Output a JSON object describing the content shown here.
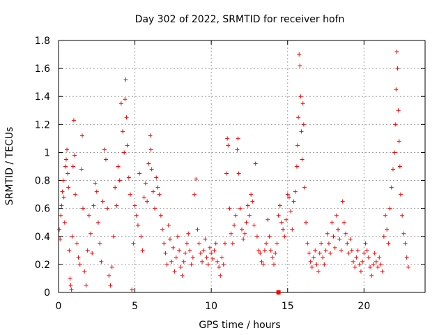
{
  "chart_data": {
    "type": "scatter",
    "title": "Day 302 of 2022, SRMTID for receiver hofn",
    "xlabel": "GPS time / hours",
    "ylabel": "SRMTID / TECUs",
    "xlim": [
      0,
      24
    ],
    "ylim": [
      0,
      1.8
    ],
    "xticks": [
      0,
      5,
      10,
      15,
      20
    ],
    "xtick_labels": [
      "0",
      "5",
      "10",
      "15",
      "20"
    ],
    "yticks": [
      0,
      0.2,
      0.4,
      0.6,
      0.8,
      1.0,
      1.2,
      1.4,
      1.6,
      1.8
    ],
    "ytick_labels": [
      "0",
      "0.2",
      "0.4",
      "0.6",
      "0.8",
      "1",
      "1.2",
      "1.4",
      "1.6",
      "1.8"
    ],
    "grid": true,
    "marker": "plus",
    "color": "#ff0000",
    "series": [
      {
        "name": "hofn",
        "points": [
          [
            0.05,
            0.45
          ],
          [
            0.1,
            0.38
          ],
          [
            0.15,
            0.55
          ],
          [
            0.2,
            0.62
          ],
          [
            0.25,
            0.72
          ],
          [
            0.3,
            0.8
          ],
          [
            0.35,
            0.68
          ],
          [
            0.4,
            0.5
          ],
          [
            0.45,
            0.9
          ],
          [
            0.5,
            0.95
          ],
          [
            0.55,
            1.02
          ],
          [
            0.6,
            0.85
          ],
          [
            0.65,
            0.75
          ],
          [
            0.7,
            0.3
          ],
          [
            0.75,
            0.1
          ],
          [
            0.8,
            0.05
          ],
          [
            0.85,
            0.02
          ],
          [
            0.9,
            0.4
          ],
          [
            0.95,
            0.9
          ],
          [
            1.0,
            1.23
          ],
          [
            1.05,
            0.98
          ],
          [
            1.1,
            0.7
          ],
          [
            1.2,
            0.35
          ],
          [
            1.3,
            0.25
          ],
          [
            1.4,
            0.2
          ],
          [
            1.5,
            0.88
          ],
          [
            1.55,
            1.12
          ],
          [
            1.6,
            0.6
          ],
          [
            1.7,
            0.15
          ],
          [
            1.8,
            0.05
          ],
          [
            1.9,
            0.3
          ],
          [
            2.0,
            0.55
          ],
          [
            2.1,
            0.42
          ],
          [
            2.2,
            0.28
          ],
          [
            2.3,
            0.62
          ],
          [
            2.4,
            0.78
          ],
          [
            2.5,
            0.72
          ],
          [
            2.6,
            0.5
          ],
          [
            2.7,
            0.35
          ],
          [
            2.8,
            0.22
          ],
          [
            2.9,
            0.65
          ],
          [
            3.0,
            1.02
          ],
          [
            3.1,
            0.95
          ],
          [
            3.2,
            0.6
          ],
          [
            3.3,
            0.12
          ],
          [
            3.4,
            0.05
          ],
          [
            3.5,
            0.18
          ],
          [
            3.6,
            0.4
          ],
          [
            3.7,
            0.75
          ],
          [
            3.8,
            0.62
          ],
          [
            3.9,
            0.9
          ],
          [
            4.0,
            0.8
          ],
          [
            4.1,
            1.35
          ],
          [
            4.2,
            1.15
          ],
          [
            4.3,
            1.0
          ],
          [
            4.35,
            1.38
          ],
          [
            4.4,
            1.52
          ],
          [
            4.45,
            1.25
          ],
          [
            4.5,
            1.05
          ],
          [
            4.6,
            0.82
          ],
          [
            4.7,
            0.7
          ],
          [
            4.8,
            0.02
          ],
          [
            4.9,
            0.35
          ],
          [
            5.0,
            0.62
          ],
          [
            5.1,
            0.55
          ],
          [
            5.2,
            0.48
          ],
          [
            5.3,
            0.85
          ],
          [
            5.4,
            0.4
          ],
          [
            5.5,
            0.3
          ],
          [
            5.6,
            0.68
          ],
          [
            5.7,
            0.78
          ],
          [
            5.8,
            0.65
          ],
          [
            5.9,
            0.92
          ],
          [
            6.0,
            1.12
          ],
          [
            6.05,
            1.02
          ],
          [
            6.1,
            0.88
          ],
          [
            6.2,
            0.72
          ],
          [
            6.3,
            0.6
          ],
          [
            6.4,
            0.82
          ],
          [
            6.5,
            0.75
          ],
          [
            6.6,
            0.7
          ],
          [
            6.7,
            0.55
          ],
          [
            6.8,
            0.45
          ],
          [
            6.9,
            0.35
          ],
          [
            7.0,
            0.28
          ],
          [
            7.1,
            0.2
          ],
          [
            7.2,
            0.48
          ],
          [
            7.3,
            0.38
          ],
          [
            7.4,
            0.22
          ],
          [
            7.5,
            0.32
          ],
          [
            7.6,
            0.15
          ],
          [
            7.7,
            0.25
          ],
          [
            7.8,
            0.4
          ],
          [
            7.9,
            0.3
          ],
          [
            8.0,
            0.18
          ],
          [
            8.1,
            0.12
          ],
          [
            8.2,
            0.22
          ],
          [
            8.3,
            0.28
          ],
          [
            8.4,
            0.35
          ],
          [
            8.5,
            0.42
          ],
          [
            8.6,
            0.3
          ],
          [
            8.7,
            0.2
          ],
          [
            8.8,
            0.25
          ],
          [
            8.9,
            0.7
          ],
          [
            9.0,
            0.81
          ],
          [
            9.1,
            0.45
          ],
          [
            9.2,
            0.35
          ],
          [
            9.3,
            0.28
          ],
          [
            9.4,
            0.22
          ],
          [
            9.5,
            0.3
          ],
          [
            9.6,
            0.38
          ],
          [
            9.7,
            0.25
          ],
          [
            9.8,
            0.2
          ],
          [
            9.9,
            0.32
          ],
          [
            10.0,
            0.28
          ],
          [
            10.1,
            0.24
          ],
          [
            10.2,
            0.3
          ],
          [
            10.3,
            0.35
          ],
          [
            10.4,
            0.22
          ],
          [
            10.5,
            0.18
          ],
          [
            10.6,
            0.12
          ],
          [
            10.7,
            0.25
          ],
          [
            10.8,
            0.2
          ],
          [
            10.9,
            0.35
          ],
          [
            11.0,
            0.85
          ],
          [
            11.05,
            1.1
          ],
          [
            11.1,
            1.05
          ],
          [
            11.2,
            0.6
          ],
          [
            11.3,
            0.42
          ],
          [
            11.4,
            0.35
          ],
          [
            11.5,
            0.48
          ],
          [
            11.6,
            0.55
          ],
          [
            11.7,
            1.02
          ],
          [
            11.75,
            1.1
          ],
          [
            11.8,
            0.85
          ],
          [
            11.9,
            0.6
          ],
          [
            12.0,
            0.45
          ],
          [
            12.1,
            0.38
          ],
          [
            12.2,
            0.42
          ],
          [
            12.3,
            0.5
          ],
          [
            12.4,
            0.62
          ],
          [
            12.5,
            0.55
          ],
          [
            12.6,
            0.7
          ],
          [
            12.7,
            0.65
          ],
          [
            12.8,
            0.48
          ],
          [
            12.9,
            0.92
          ],
          [
            13.0,
            0.4
          ],
          [
            13.1,
            0.3
          ],
          [
            13.2,
            0.28
          ],
          [
            13.3,
            0.22
          ],
          [
            13.4,
            0.2
          ],
          [
            13.5,
            0.3
          ],
          [
            13.6,
            0.35
          ],
          [
            13.7,
            0.52
          ],
          [
            13.8,
            0.4
          ],
          [
            13.9,
            0.3
          ],
          [
            14.0,
            0.25
          ],
          [
            14.1,
            0.2
          ],
          [
            14.2,
            0.28
          ],
          [
            14.3,
            0.35
          ],
          [
            14.4,
            0.55
          ],
          [
            14.5,
            0.62
          ],
          [
            14.6,
            0.5
          ],
          [
            14.7,
            0.45
          ],
          [
            14.8,
            0.4
          ],
          [
            14.9,
            0.52
          ],
          [
            15.0,
            0.7
          ],
          [
            15.1,
            0.68
          ],
          [
            15.2,
            0.58
          ],
          [
            15.3,
            0.45
          ],
          [
            15.4,
            0.65
          ],
          [
            15.5,
            0.72
          ],
          [
            15.6,
            0.9
          ],
          [
            15.65,
            1.05
          ],
          [
            15.7,
            1.25
          ],
          [
            15.75,
            1.7
          ],
          [
            15.8,
            1.62
          ],
          [
            15.85,
            1.4
          ],
          [
            15.9,
            1.15
          ],
          [
            15.95,
            0.95
          ],
          [
            16.0,
            1.35
          ],
          [
            16.05,
            1.2
          ],
          [
            16.1,
            0.75
          ],
          [
            16.2,
            0.5
          ],
          [
            16.3,
            0.35
          ],
          [
            16.4,
            0.28
          ],
          [
            16.5,
            0.22
          ],
          [
            16.6,
            0.18
          ],
          [
            16.7,
            0.25
          ],
          [
            16.8,
            0.3
          ],
          [
            16.9,
            0.2
          ],
          [
            17.0,
            0.15
          ],
          [
            17.1,
            0.28
          ],
          [
            17.2,
            0.35
          ],
          [
            17.3,
            0.25
          ],
          [
            17.4,
            0.2
          ],
          [
            17.5,
            0.3
          ],
          [
            17.6,
            0.42
          ],
          [
            17.7,
            0.35
          ],
          [
            17.8,
            0.28
          ],
          [
            17.9,
            0.5
          ],
          [
            18.0,
            0.4
          ],
          [
            18.1,
            0.32
          ],
          [
            18.2,
            0.55
          ],
          [
            18.3,
            0.45
          ],
          [
            18.4,
            0.38
          ],
          [
            18.5,
            0.3
          ],
          [
            18.6,
            0.65
          ],
          [
            18.7,
            0.5
          ],
          [
            18.8,
            0.42
          ],
          [
            18.9,
            0.35
          ],
          [
            19.0,
            0.28
          ],
          [
            19.1,
            0.38
          ],
          [
            19.2,
            0.3
          ],
          [
            19.3,
            0.22
          ],
          [
            19.4,
            0.18
          ],
          [
            19.5,
            0.25
          ],
          [
            19.6,
            0.3
          ],
          [
            19.7,
            0.2
          ],
          [
            19.8,
            0.15
          ],
          [
            19.9,
            0.22
          ],
          [
            20.0,
            0.28
          ],
          [
            20.1,
            0.35
          ],
          [
            20.2,
            0.3
          ],
          [
            20.3,
            0.25
          ],
          [
            20.4,
            0.18
          ],
          [
            20.5,
            0.12
          ],
          [
            20.6,
            0.2
          ],
          [
            20.7,
            0.28
          ],
          [
            20.8,
            0.22
          ],
          [
            20.9,
            0.18
          ],
          [
            21.0,
            0.25
          ],
          [
            21.1,
            0.2
          ],
          [
            21.2,
            0.15
          ],
          [
            21.3,
            0.4
          ],
          [
            21.4,
            0.55
          ],
          [
            21.5,
            0.45
          ],
          [
            21.6,
            0.35
          ],
          [
            21.7,
            0.6
          ],
          [
            21.8,
            0.75
          ],
          [
            21.9,
            0.88
          ],
          [
            22.0,
            1.0
          ],
          [
            22.05,
            1.2
          ],
          [
            22.1,
            1.45
          ],
          [
            22.15,
            1.72
          ],
          [
            22.2,
            1.6
          ],
          [
            22.25,
            1.3
          ],
          [
            22.3,
            1.08
          ],
          [
            22.35,
            0.9
          ],
          [
            22.4,
            0.7
          ],
          [
            22.5,
            0.55
          ],
          [
            22.6,
            0.42
          ],
          [
            22.7,
            0.35
          ],
          [
            22.8,
            0.25
          ],
          [
            22.9,
            0.18
          ]
        ]
      }
    ],
    "extra_marker": {
      "x": 14.4,
      "y": 0.0
    }
  }
}
